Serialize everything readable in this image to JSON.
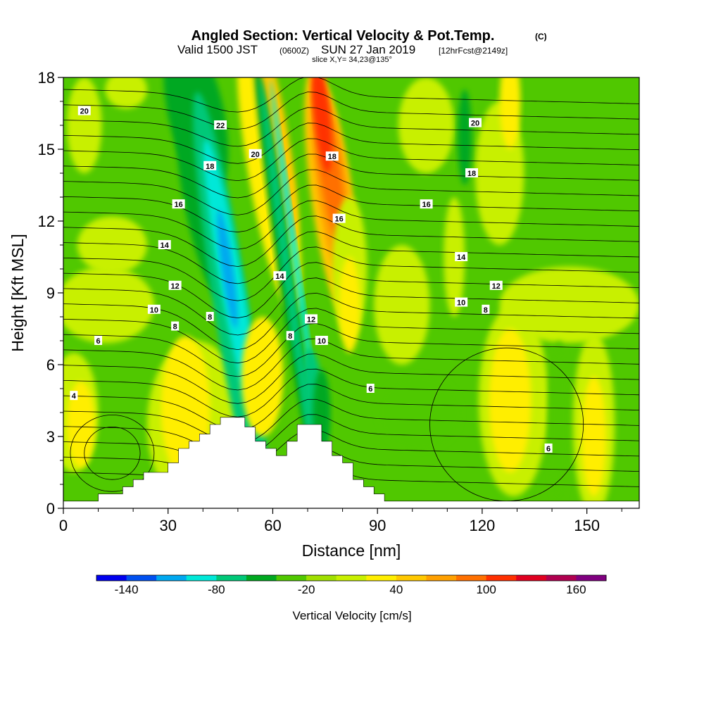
{
  "title": {
    "main": "Angled Section: Vertical Velocity & Pot.Temp.",
    "main_unit": "(C)",
    "sub_prefix": "Valid 1500 JST",
    "sub_z": "(0600Z)",
    "sub_date": "SUN 27 Jan 2019",
    "sub_fcst": "[12hrFcst@2149z]",
    "slice": "slice X,Y= 34,23@135°"
  },
  "chart_data": {
    "type": "heatmap",
    "xlabel": "Distance [nm]",
    "ylabel": "Height [Kft MSL]",
    "xlim": [
      0,
      165
    ],
    "ylim": [
      0,
      18
    ],
    "xticks": [
      0,
      30,
      60,
      90,
      120,
      150
    ],
    "yticks": [
      0,
      3,
      6,
      9,
      12,
      15,
      18
    ],
    "colorbar": {
      "label": "Vertical Velocity [cm/s]",
      "min": -160,
      "max": 180,
      "step": 20,
      "tick_labels": [
        "-140",
        "-80",
        "-20",
        "40",
        "100",
        "160"
      ],
      "tick_values": [
        -140,
        -80,
        -20,
        40,
        100,
        160
      ],
      "colors": [
        "#0000ee",
        "#0050f0",
        "#00a8f0",
        "#00e8d8",
        "#00c878",
        "#00a820",
        "#50c800",
        "#a0e000",
        "#c8f000",
        "#ffee00",
        "#ffc800",
        "#ffa000",
        "#ff7000",
        "#ff3000",
        "#e00020",
        "#b00050",
        "#800080"
      ]
    },
    "terrain_kft": [
      [
        0,
        0.3
      ],
      [
        10,
        0.3
      ],
      [
        10,
        0.6
      ],
      [
        16,
        0.6
      ],
      [
        16,
        0.6
      ],
      [
        17,
        0.6
      ],
      [
        17,
        0.9
      ],
      [
        20,
        0.9
      ],
      [
        20,
        1.2
      ],
      [
        23,
        1.2
      ],
      [
        23,
        1.5
      ],
      [
        26,
        1.5
      ],
      [
        26,
        1.5
      ],
      [
        30,
        1.5
      ],
      [
        30,
        1.9
      ],
      [
        33,
        1.9
      ],
      [
        33,
        2.5
      ],
      [
        36,
        2.5
      ],
      [
        36,
        2.8
      ],
      [
        39,
        2.8
      ],
      [
        39,
        3.1
      ],
      [
        42,
        3.1
      ],
      [
        42,
        3.5
      ],
      [
        45,
        3.5
      ],
      [
        45,
        3.8
      ],
      [
        52,
        3.8
      ],
      [
        52,
        3.4
      ],
      [
        55,
        3.4
      ],
      [
        55,
        2.8
      ],
      [
        58,
        2.8
      ],
      [
        58,
        2.5
      ],
      [
        61,
        2.5
      ],
      [
        61,
        2.2
      ],
      [
        64,
        2.2
      ],
      [
        64,
        2.8
      ],
      [
        67,
        2.8
      ],
      [
        67,
        3.5
      ],
      [
        74,
        3.5
      ],
      [
        74,
        2.8
      ],
      [
        77,
        2.8
      ],
      [
        77,
        2.2
      ],
      [
        80,
        2.2
      ],
      [
        80,
        1.9
      ],
      [
        83,
        1.9
      ],
      [
        83,
        1.2
      ],
      [
        86,
        1.2
      ],
      [
        86,
        0.9
      ],
      [
        89,
        0.9
      ],
      [
        89,
        0.6
      ],
      [
        92,
        0.6
      ],
      [
        92,
        0.3
      ],
      [
        165,
        0.3
      ]
    ],
    "theta_contour_labels": [
      {
        "text": "20",
        "x": 6,
        "y": 16.6
      },
      {
        "text": "22",
        "x": 45,
        "y": 16.0
      },
      {
        "text": "20",
        "x": 55,
        "y": 14.8
      },
      {
        "text": "18",
        "x": 42,
        "y": 14.3
      },
      {
        "text": "16",
        "x": 33,
        "y": 12.7
      },
      {
        "text": "14",
        "x": 29,
        "y": 11.0
      },
      {
        "text": "12",
        "x": 32,
        "y": 9.3
      },
      {
        "text": "10",
        "x": 26,
        "y": 8.3
      },
      {
        "text": "8",
        "x": 32,
        "y": 7.6
      },
      {
        "text": "8",
        "x": 42,
        "y": 8.0
      },
      {
        "text": "6",
        "x": 10,
        "y": 7.0
      },
      {
        "text": "4",
        "x": 3,
        "y": 4.7
      },
      {
        "text": "18",
        "x": 77,
        "y": 14.7
      },
      {
        "text": "16",
        "x": 79,
        "y": 12.1
      },
      {
        "text": "14",
        "x": 62,
        "y": 9.7
      },
      {
        "text": "12",
        "x": 71,
        "y": 7.9
      },
      {
        "text": "8",
        "x": 65,
        "y": 7.2
      },
      {
        "text": "10",
        "x": 74,
        "y": 7.0
      },
      {
        "text": "6",
        "x": 88,
        "y": 5.0
      },
      {
        "text": "20",
        "x": 118,
        "y": 16.1
      },
      {
        "text": "18",
        "x": 117,
        "y": 14.0
      },
      {
        "text": "16",
        "x": 104,
        "y": 12.7
      },
      {
        "text": "14",
        "x": 114,
        "y": 10.5
      },
      {
        "text": "12",
        "x": 124,
        "y": 9.3
      },
      {
        "text": "10",
        "x": 114,
        "y": 8.6
      },
      {
        "text": "8",
        "x": 121,
        "y": 8.3
      },
      {
        "text": "6",
        "x": 139,
        "y": 2.5
      }
    ]
  }
}
